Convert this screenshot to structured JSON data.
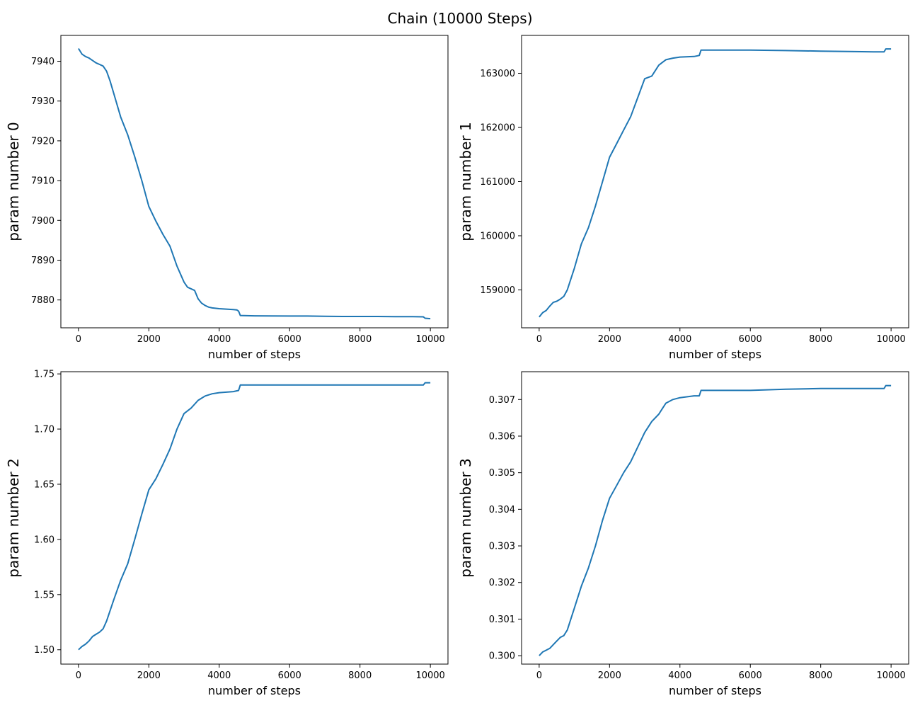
{
  "figure": {
    "title": "Chain (10000 Steps)",
    "line_color": "#1f77b4"
  },
  "chart_data": [
    {
      "type": "line",
      "title": "",
      "xlabel": "number of steps",
      "ylabel": "param number 0",
      "xlim": [
        -500,
        10500
      ],
      "ylim": [
        7873,
        7946.5
      ],
      "xticks": [
        0,
        2000,
        4000,
        6000,
        8000,
        10000
      ],
      "xtick_labels": [
        "0",
        "2000",
        "4000",
        "6000",
        "8000",
        "10000"
      ],
      "yticks": [
        7880,
        7890,
        7900,
        7910,
        7920,
        7930,
        7940
      ],
      "ytick_labels": [
        "7880",
        "7890",
        "7900",
        "7910",
        "7920",
        "7930",
        "7940"
      ],
      "series": [
        {
          "name": "param number 0",
          "x": [
            0,
            100,
            200,
            300,
            400,
            500,
            600,
            700,
            800,
            900,
            1000,
            1200,
            1400,
            1600,
            1800,
            2000,
            2200,
            2400,
            2600,
            2800,
            3000,
            3100,
            3200,
            3300,
            3400,
            3500,
            3600,
            3700,
            3800,
            4000,
            4200,
            4400,
            4500,
            4550,
            4600,
            5000,
            6000,
            6500,
            7000,
            7500,
            8000,
            8500,
            9000,
            9500,
            9800,
            9850,
            10000
          ],
          "values": [
            7943.2,
            7941.8,
            7941.2,
            7940.8,
            7940.2,
            7939.6,
            7939.2,
            7938.8,
            7937.5,
            7935.0,
            7932.0,
            7926.0,
            7921.5,
            7916.0,
            7910.0,
            7903.5,
            7899.8,
            7896.5,
            7893.5,
            7888.5,
            7884.5,
            7883.2,
            7882.8,
            7882.4,
            7880.3,
            7879.2,
            7878.6,
            7878.2,
            7878.0,
            7877.8,
            7877.7,
            7877.6,
            7877.5,
            7877.2,
            7876.1,
            7876.0,
            7875.95,
            7875.95,
            7875.9,
            7875.85,
            7875.85,
            7875.85,
            7875.8,
            7875.8,
            7875.75,
            7875.4,
            7875.3
          ]
        }
      ]
    },
    {
      "type": "line",
      "title": "",
      "xlabel": "number of steps",
      "ylabel": "param number 1",
      "xlim": [
        -500,
        10500
      ],
      "ylim": [
        158300,
        163700
      ],
      "xticks": [
        0,
        2000,
        4000,
        6000,
        8000,
        10000
      ],
      "xtick_labels": [
        "0",
        "2000",
        "4000",
        "6000",
        "8000",
        "10000"
      ],
      "yticks": [
        159000,
        160000,
        161000,
        162000,
        163000
      ],
      "ytick_labels": [
        "159000",
        "160000",
        "161000",
        "162000",
        "163000"
      ],
      "series": [
        {
          "name": "param number 1",
          "x": [
            0,
            100,
            200,
            300,
            400,
            500,
            600,
            700,
            800,
            1000,
            1200,
            1400,
            1600,
            1800,
            2000,
            2200,
            2400,
            2600,
            2800,
            3000,
            3200,
            3400,
            3500,
            3600,
            3800,
            4000,
            4400,
            4550,
            4600,
            5000,
            6000,
            7000,
            8000,
            9000,
            9500,
            9800,
            9850,
            10000
          ],
          "values": [
            158500,
            158580,
            158620,
            158700,
            158770,
            158790,
            158830,
            158880,
            159000,
            159400,
            159850,
            160150,
            160550,
            161000,
            161450,
            161700,
            161950,
            162200,
            162550,
            162900,
            162950,
            163150,
            163200,
            163250,
            163280,
            163300,
            163310,
            163330,
            163430,
            163430,
            163430,
            163420,
            163410,
            163400,
            163395,
            163395,
            163450,
            163450
          ]
        }
      ]
    },
    {
      "type": "line",
      "title": "",
      "xlabel": "number of steps",
      "ylabel": "param number 2",
      "xlim": [
        -500,
        10500
      ],
      "ylim": [
        1.487,
        1.752
      ],
      "xticks": [
        0,
        2000,
        4000,
        6000,
        8000,
        10000
      ],
      "xtick_labels": [
        "0",
        "2000",
        "4000",
        "6000",
        "8000",
        "10000"
      ],
      "yticks": [
        1.5,
        1.55,
        1.6,
        1.65,
        1.7,
        1.75
      ],
      "ytick_labels": [
        "1.50",
        "1.55",
        "1.60",
        "1.65",
        "1.70",
        "1.75"
      ],
      "series": [
        {
          "name": "param number 2",
          "x": [
            0,
            100,
            200,
            300,
            400,
            500,
            600,
            700,
            800,
            1000,
            1200,
            1400,
            1600,
            1800,
            2000,
            2200,
            2400,
            2600,
            2800,
            3000,
            3200,
            3400,
            3500,
            3600,
            3800,
            4000,
            4400,
            4550,
            4600,
            5000,
            6000,
            7000,
            8000,
            9000,
            9800,
            9850,
            10000
          ],
          "values": [
            1.5,
            1.503,
            1.505,
            1.508,
            1.512,
            1.514,
            1.516,
            1.519,
            1.526,
            1.545,
            1.563,
            1.578,
            1.6,
            1.623,
            1.645,
            1.655,
            1.668,
            1.682,
            1.7,
            1.714,
            1.719,
            1.726,
            1.728,
            1.73,
            1.732,
            1.733,
            1.734,
            1.735,
            1.74,
            1.74,
            1.74,
            1.74,
            1.74,
            1.74,
            1.74,
            1.742,
            1.742
          ]
        }
      ]
    },
    {
      "type": "line",
      "title": "",
      "xlabel": "number of steps",
      "ylabel": "param number 3",
      "xlim": [
        -500,
        10500
      ],
      "ylim": [
        0.29977,
        0.30776
      ],
      "xticks": [
        0,
        2000,
        4000,
        6000,
        8000,
        10000
      ],
      "xtick_labels": [
        "0",
        "2000",
        "4000",
        "6000",
        "8000",
        "10000"
      ],
      "yticks": [
        0.3,
        0.301,
        0.302,
        0.303,
        0.304,
        0.305,
        0.306,
        0.307
      ],
      "ytick_labels": [
        "0.300",
        "0.301",
        "0.302",
        "0.303",
        "0.304",
        "0.305",
        "0.306",
        "0.307"
      ],
      "series": [
        {
          "name": "param number 3",
          "x": [
            0,
            100,
            200,
            300,
            400,
            500,
            600,
            700,
            800,
            1000,
            1200,
            1400,
            1600,
            1800,
            2000,
            2200,
            2400,
            2600,
            2800,
            3000,
            3200,
            3400,
            3500,
            3600,
            3800,
            4000,
            4400,
            4550,
            4600,
            5000,
            6000,
            7000,
            8000,
            9000,
            9800,
            9850,
            10000
          ],
          "values": [
            0.3,
            0.3001,
            0.30015,
            0.3002,
            0.3003,
            0.3004,
            0.3005,
            0.30055,
            0.3007,
            0.3013,
            0.3019,
            0.3024,
            0.303,
            0.3037,
            0.3043,
            0.30465,
            0.305,
            0.3053,
            0.3057,
            0.3061,
            0.3064,
            0.3066,
            0.30675,
            0.3069,
            0.307,
            0.30705,
            0.3071,
            0.3071,
            0.30725,
            0.30725,
            0.30725,
            0.30728,
            0.3073,
            0.3073,
            0.3073,
            0.30738,
            0.30738
          ]
        }
      ]
    }
  ]
}
